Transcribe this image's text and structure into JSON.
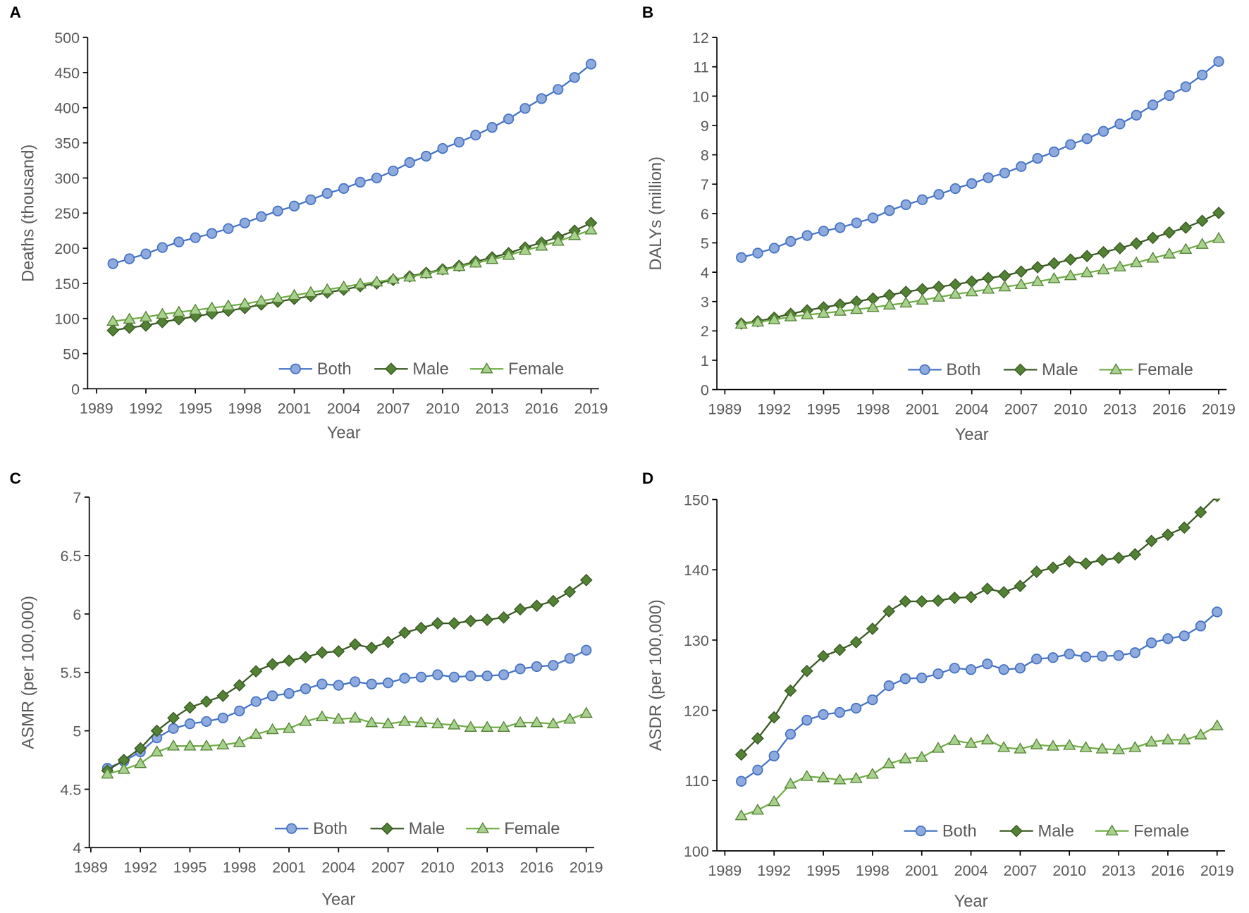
{
  "chart_data": [
    {
      "type": "line",
      "panel": "A",
      "xlabel": "Year",
      "ylabel": "Deaths (thousand)",
      "ylim": [
        0,
        500
      ],
      "yticks": [
        0,
        50,
        100,
        150,
        200,
        250,
        300,
        350,
        400,
        450,
        500
      ],
      "xlim": [
        1989,
        2019
      ],
      "xticks": [
        1989,
        1992,
        1995,
        1998,
        2001,
        2004,
        2007,
        2010,
        2013,
        2016,
        2019
      ],
      "legend": "bottom-right",
      "x": [
        1990,
        1991,
        1992,
        1993,
        1994,
        1995,
        1996,
        1997,
        1998,
        1999,
        2000,
        2001,
        2002,
        2003,
        2004,
        2005,
        2006,
        2007,
        2008,
        2009,
        2010,
        2011,
        2012,
        2013,
        2014,
        2015,
        2016,
        2017,
        2018,
        2019
      ],
      "series": [
        {
          "name": "Both",
          "values": [
            178,
            185,
            192,
            201,
            209,
            215,
            221,
            228,
            236,
            245,
            253,
            260,
            269,
            278,
            285,
            294,
            300,
            310,
            322,
            331,
            342,
            351,
            361,
            372,
            384,
            399,
            413,
            426,
            443,
            462
          ]
        },
        {
          "name": "Male",
          "values": [
            83,
            87,
            90,
            95,
            99,
            103,
            107,
            111,
            115,
            120,
            124,
            128,
            132,
            137,
            141,
            146,
            150,
            155,
            160,
            165,
            170,
            175,
            181,
            187,
            193,
            201,
            208,
            216,
            225,
            236
          ]
        },
        {
          "name": "Female",
          "values": [
            96,
            99,
            102,
            106,
            109,
            112,
            115,
            118,
            121,
            125,
            129,
            133,
            137,
            141,
            145,
            149,
            152,
            156,
            159,
            164,
            169,
            174,
            179,
            184,
            190,
            197,
            203,
            210,
            218,
            226
          ]
        }
      ]
    },
    {
      "type": "line",
      "panel": "B",
      "xlabel": "Year",
      "ylabel": "DALYs (million)",
      "ylim": [
        0,
        12
      ],
      "yticks": [
        0,
        1,
        2,
        3,
        4,
        5,
        6,
        7,
        8,
        9,
        10,
        11,
        12
      ],
      "xlim": [
        1989,
        2019
      ],
      "xticks": [
        1989,
        1992,
        1995,
        1998,
        2001,
        2004,
        2007,
        2010,
        2013,
        2016,
        2019
      ],
      "legend": "bottom-right",
      "x": [
        1990,
        1991,
        1992,
        1993,
        1994,
        1995,
        1996,
        1997,
        1998,
        1999,
        2000,
        2001,
        2002,
        2003,
        2004,
        2005,
        2006,
        2007,
        2008,
        2009,
        2010,
        2011,
        2012,
        2013,
        2014,
        2015,
        2016,
        2017,
        2018,
        2019
      ],
      "series": [
        {
          "name": "Both",
          "values": [
            4.5,
            4.65,
            4.82,
            5.05,
            5.25,
            5.4,
            5.52,
            5.68,
            5.85,
            6.1,
            6.3,
            6.47,
            6.65,
            6.85,
            7.02,
            7.22,
            7.38,
            7.6,
            7.88,
            8.1,
            8.35,
            8.55,
            8.8,
            9.05,
            9.35,
            9.7,
            10.02,
            10.32,
            10.72,
            11.18
          ]
        },
        {
          "name": "Male",
          "values": [
            2.25,
            2.33,
            2.45,
            2.58,
            2.7,
            2.8,
            2.9,
            3.0,
            3.1,
            3.22,
            3.33,
            3.42,
            3.5,
            3.58,
            3.68,
            3.8,
            3.88,
            4.02,
            4.17,
            4.3,
            4.43,
            4.55,
            4.68,
            4.82,
            4.98,
            5.17,
            5.35,
            5.52,
            5.75,
            6.02
          ]
        },
        {
          "name": "Female",
          "values": [
            2.23,
            2.3,
            2.38,
            2.48,
            2.55,
            2.6,
            2.67,
            2.73,
            2.8,
            2.88,
            2.95,
            3.05,
            3.15,
            3.25,
            3.33,
            3.42,
            3.5,
            3.58,
            3.68,
            3.78,
            3.88,
            3.98,
            4.08,
            4.18,
            4.32,
            4.48,
            4.62,
            4.78,
            4.95,
            5.15
          ]
        }
      ]
    },
    {
      "type": "line",
      "panel": "C",
      "xlabel": "Year",
      "ylabel": "ASMR (per 100,000)",
      "ylim": [
        4,
        7
      ],
      "yticks": [
        4,
        4.5,
        5,
        5.5,
        6,
        6.5,
        7
      ],
      "xlim": [
        1989,
        2019
      ],
      "xticks": [
        1989,
        1992,
        1995,
        1998,
        2001,
        2004,
        2007,
        2010,
        2013,
        2016,
        2019
      ],
      "legend": "bottom-right",
      "x": [
        1990,
        1991,
        1992,
        1993,
        1994,
        1995,
        1996,
        1997,
        1998,
        1999,
        2000,
        2001,
        2002,
        2003,
        2004,
        2005,
        2006,
        2007,
        2008,
        2009,
        2010,
        2011,
        2012,
        2013,
        2014,
        2015,
        2016,
        2017,
        2018,
        2019
      ],
      "series": [
        {
          "name": "Both",
          "values": [
            4.68,
            4.74,
            4.82,
            4.94,
            5.02,
            5.06,
            5.08,
            5.11,
            5.17,
            5.25,
            5.3,
            5.32,
            5.36,
            5.4,
            5.39,
            5.42,
            5.4,
            5.41,
            5.45,
            5.46,
            5.48,
            5.46,
            5.47,
            5.47,
            5.48,
            5.53,
            5.55,
            5.56,
            5.62,
            5.69
          ]
        },
        {
          "name": "Male",
          "values": [
            4.66,
            4.75,
            4.85,
            5.0,
            5.11,
            5.2,
            5.25,
            5.3,
            5.39,
            5.51,
            5.57,
            5.6,
            5.63,
            5.67,
            5.68,
            5.74,
            5.71,
            5.76,
            5.84,
            5.88,
            5.92,
            5.92,
            5.94,
            5.95,
            5.97,
            6.04,
            6.07,
            6.11,
            6.19,
            6.29
          ]
        },
        {
          "name": "Female",
          "values": [
            4.63,
            4.67,
            4.72,
            4.82,
            4.87,
            4.87,
            4.87,
            4.88,
            4.9,
            4.97,
            5.01,
            5.02,
            5.08,
            5.12,
            5.1,
            5.11,
            5.07,
            5.06,
            5.08,
            5.07,
            5.06,
            5.05,
            5.03,
            5.03,
            5.03,
            5.07,
            5.07,
            5.06,
            5.1,
            5.15
          ]
        }
      ]
    },
    {
      "type": "line",
      "panel": "D",
      "xlabel": "Year",
      "ylabel": "ASDR (per 100,000)",
      "ylim": [
        100,
        150
      ],
      "yticks": [
        100,
        110,
        120,
        130,
        140,
        150
      ],
      "xlim": [
        1989,
        2019
      ],
      "xticks": [
        1989,
        1992,
        1995,
        1998,
        2001,
        2004,
        2007,
        2010,
        2013,
        2016,
        2019
      ],
      "legend": "bottom-right",
      "x": [
        1990,
        1991,
        1992,
        1993,
        1994,
        1995,
        1996,
        1997,
        1998,
        1999,
        2000,
        2001,
        2002,
        2003,
        2004,
        2005,
        2006,
        2007,
        2008,
        2009,
        2010,
        2011,
        2012,
        2013,
        2014,
        2015,
        2016,
        2017,
        2018,
        2019
      ],
      "series": [
        {
          "name": "Both",
          "values": [
            109.9,
            111.5,
            113.5,
            116.6,
            118.6,
            119.4,
            119.7,
            120.3,
            121.5,
            123.5,
            124.5,
            124.6,
            125.2,
            126,
            125.8,
            126.6,
            125.8,
            126,
            127.3,
            127.5,
            128,
            127.6,
            127.7,
            127.8,
            128.2,
            129.6,
            130.2,
            130.6,
            132,
            134
          ]
        },
        {
          "name": "Male",
          "values": [
            113.7,
            116,
            119,
            122.8,
            125.6,
            127.7,
            128.6,
            129.7,
            131.6,
            134.1,
            135.5,
            135.5,
            135.6,
            136,
            136.1,
            137.3,
            136.8,
            137.7,
            139.7,
            140.3,
            141.2,
            140.9,
            141.4,
            141.7,
            142.2,
            144.1,
            145,
            146,
            148.2,
            150.5
          ]
        },
        {
          "name": "Female",
          "values": [
            105,
            105.8,
            107,
            109.5,
            110.6,
            110.4,
            110.1,
            110.3,
            110.9,
            112.4,
            113.1,
            113.3,
            114.6,
            115.7,
            115.3,
            115.8,
            114.7,
            114.5,
            115.1,
            114.9,
            115,
            114.7,
            114.5,
            114.4,
            114.7,
            115.5,
            115.8,
            115.8,
            116.5,
            117.8
          ]
        }
      ]
    }
  ],
  "colors": {
    "Both": {
      "line": "#4472c4",
      "fill": "#8faadc",
      "stroke": "#4472c4"
    },
    "Male": {
      "line": "#385723",
      "fill": "#548235",
      "stroke": "#385723"
    },
    "Female": {
      "line": "#70ad47",
      "fill": "#a9d18e",
      "stroke": "#548235"
    }
  }
}
